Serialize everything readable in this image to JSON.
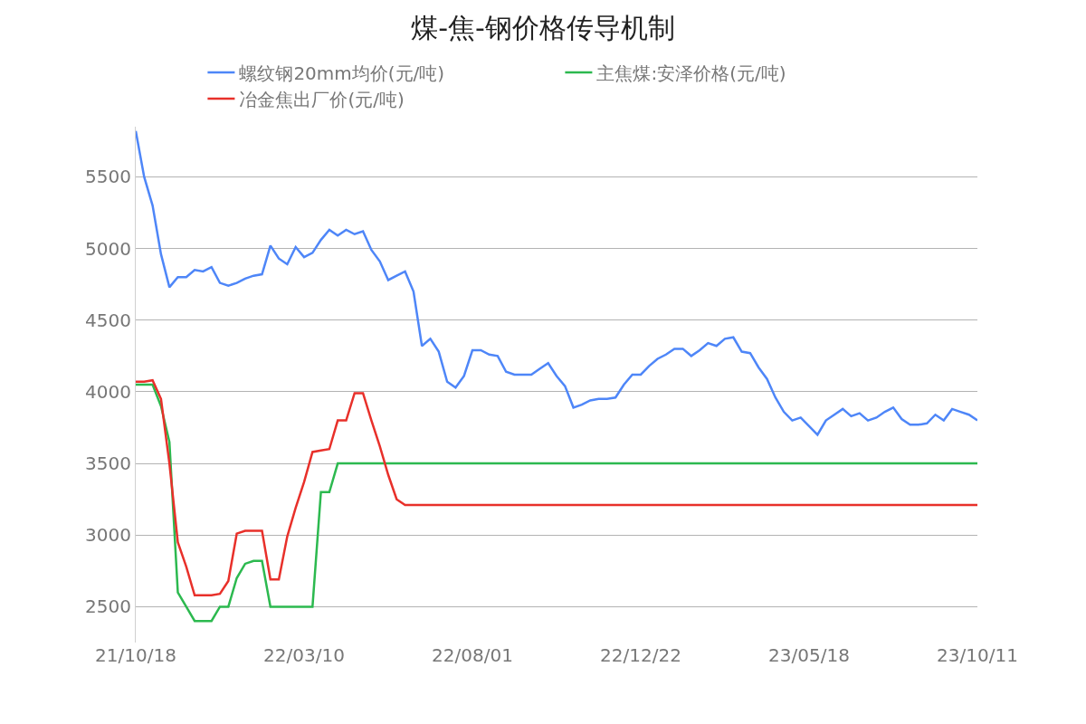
{
  "chart_data": {
    "type": "line",
    "title": "煤-焦-钢价格传导机制",
    "categories": [
      "21/10/18",
      null,
      null,
      null,
      null,
      null,
      null,
      null,
      null,
      null,
      null,
      null,
      null,
      null,
      null,
      null,
      null,
      null,
      null,
      null,
      "22/03/10",
      null,
      null,
      null,
      null,
      null,
      null,
      null,
      null,
      null,
      null,
      null,
      null,
      null,
      null,
      null,
      null,
      null,
      null,
      null,
      "22/08/01",
      null,
      null,
      null,
      null,
      null,
      null,
      null,
      null,
      null,
      null,
      null,
      null,
      null,
      null,
      null,
      null,
      null,
      null,
      null,
      "22/12/22",
      null,
      null,
      null,
      null,
      null,
      null,
      null,
      null,
      null,
      null,
      null,
      null,
      null,
      null,
      null,
      null,
      null,
      null,
      null,
      "23/05/18",
      null,
      null,
      null,
      null,
      null,
      null,
      null,
      null,
      null,
      null,
      null,
      null,
      null,
      null,
      null,
      null,
      null,
      null,
      null,
      "23/10/11"
    ],
    "series": [
      {
        "name": "螺纹钢20mm均价(元/吨)",
        "color": "#4e86f8",
        "values": [
          5820,
          5500,
          5300,
          4960,
          4730,
          4800,
          4800,
          4850,
          4840,
          4870,
          4760,
          4740,
          4760,
          4790,
          4810,
          4820,
          5020,
          4930,
          4890,
          5010,
          4940,
          4970,
          5060,
          5130,
          5090,
          5130,
          5100,
          5120,
          4990,
          4910,
          4780,
          4810,
          4840,
          4700,
          4320,
          4370,
          4280,
          4070,
          4030,
          4110,
          4290,
          4290,
          4260,
          4250,
          4140,
          4120,
          4120,
          4120,
          4160,
          4200,
          4110,
          4040,
          3890,
          3910,
          3940,
          3950,
          3950,
          3960,
          4050,
          4120,
          4120,
          4180,
          4230,
          4260,
          4300,
          4300,
          4250,
          4290,
          4340,
          4320,
          4370,
          4380,
          4280,
          4270,
          4170,
          4090,
          3960,
          3860,
          3800,
          3820,
          3760,
          3700,
          3800,
          3840,
          3880,
          3830,
          3850,
          3800,
          3820,
          3860,
          3890,
          3810,
          3770,
          3770,
          3780,
          3840,
          3800,
          3880,
          3860,
          3840,
          3800
        ]
      },
      {
        "name": "主焦煤:安泽价格(元/吨)",
        "color": "#2cb94f",
        "values": [
          4050,
          4050,
          4050,
          3900,
          3650,
          2600,
          2500,
          2400,
          2400,
          2400,
          2500,
          2500,
          2700,
          2800,
          2820,
          2820,
          2500,
          2500,
          2500,
          2500,
          2500,
          2500,
          3300,
          3300,
          3500,
          3500,
          3500,
          3500,
          3500,
          3500,
          3500,
          3500,
          3500,
          3500,
          3500,
          3500,
          3500,
          3500,
          3500,
          3500,
          3500,
          3500,
          3500,
          3500,
          3500,
          3500,
          3500,
          3500,
          3500,
          3500,
          3500,
          3500,
          3500,
          3500,
          3500,
          3500,
          3500,
          3500,
          3500,
          3500,
          3500,
          3500,
          3500,
          3500,
          3500,
          3500,
          3500,
          3500,
          3500,
          3500,
          3500,
          3500,
          3500,
          3500,
          3500,
          3500,
          3500,
          3500,
          3500,
          3500,
          3500,
          3500,
          3500,
          3500,
          3500,
          3500,
          3500,
          3500,
          3500,
          3500,
          3500,
          3500,
          3500,
          3500,
          3500,
          3500,
          3500,
          3500,
          3500,
          3500,
          3500
        ]
      },
      {
        "name": "冶金焦出厂价(元/吨)",
        "color": "#e8302a",
        "values": [
          4070,
          4070,
          4080,
          3950,
          3500,
          2950,
          2780,
          2580,
          2580,
          2580,
          2590,
          2680,
          3010,
          3030,
          3030,
          3030,
          2690,
          2690,
          2990,
          3190,
          3370,
          3580,
          3590,
          3600,
          3800,
          3800,
          3990,
          3990,
          3800,
          3620,
          3420,
          3250,
          3210,
          3210,
          3210,
          3210,
          3210,
          3210,
          3210,
          3210,
          3210,
          3210,
          3210,
          3210,
          3210,
          3210,
          3210,
          3210,
          3210,
          3210,
          3210,
          3210,
          3210,
          3210,
          3210,
          3210,
          3210,
          3210,
          3210,
          3210,
          3210,
          3210,
          3210,
          3210,
          3210,
          3210,
          3210,
          3210,
          3210,
          3210,
          3210,
          3210,
          3210,
          3210,
          3210,
          3210,
          3210,
          3210,
          3210,
          3210,
          3210,
          3210,
          3210,
          3210,
          3210,
          3210,
          3210,
          3210,
          3210,
          3210,
          3210,
          3210,
          3210,
          3210,
          3210,
          3210,
          3210,
          3210,
          3210,
          3210,
          3210
        ]
      }
    ],
    "ylim": [
      2250,
      5850
    ],
    "yticks": [
      2500,
      3000,
      3500,
      4000,
      4500,
      5000,
      5500
    ],
    "grid": "y",
    "legend": "top",
    "marker": "none",
    "line_style": "solid"
  }
}
